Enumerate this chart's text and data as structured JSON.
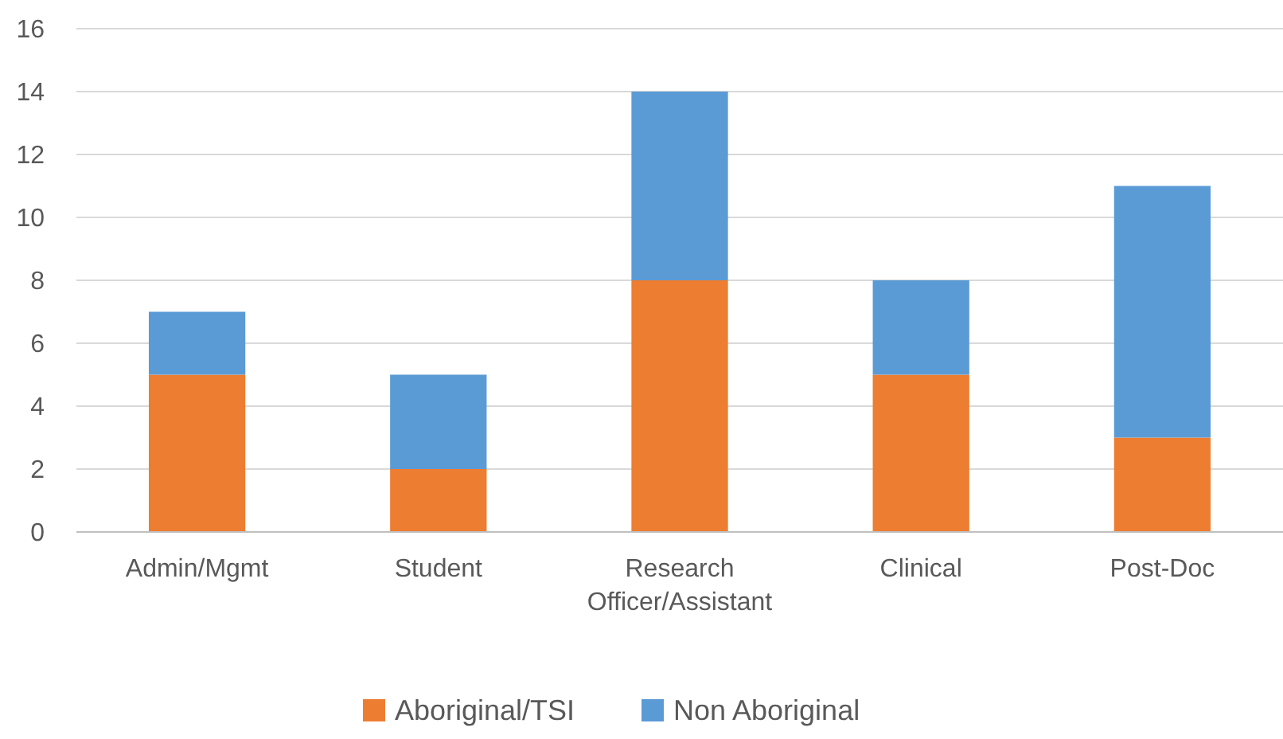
{
  "chart_data": {
    "type": "bar",
    "stacked": true,
    "categories": [
      "Admin/Mgmt",
      "Student",
      "Research Officer/Assistant",
      "Clinical",
      "Post-Doc"
    ],
    "series": [
      {
        "name": "Aboriginal/TSI",
        "color": "#ed7d31",
        "values": [
          5,
          2,
          8,
          5,
          3
        ]
      },
      {
        "name": "Non Aboriginal",
        "color": "#5b9bd5",
        "values": [
          2,
          3,
          6,
          3,
          8
        ]
      }
    ],
    "ylim": [
      0,
      16
    ],
    "yticks": [
      0,
      2,
      4,
      6,
      8,
      10,
      12,
      14,
      16
    ],
    "grid": "y",
    "legend": "bottom"
  }
}
